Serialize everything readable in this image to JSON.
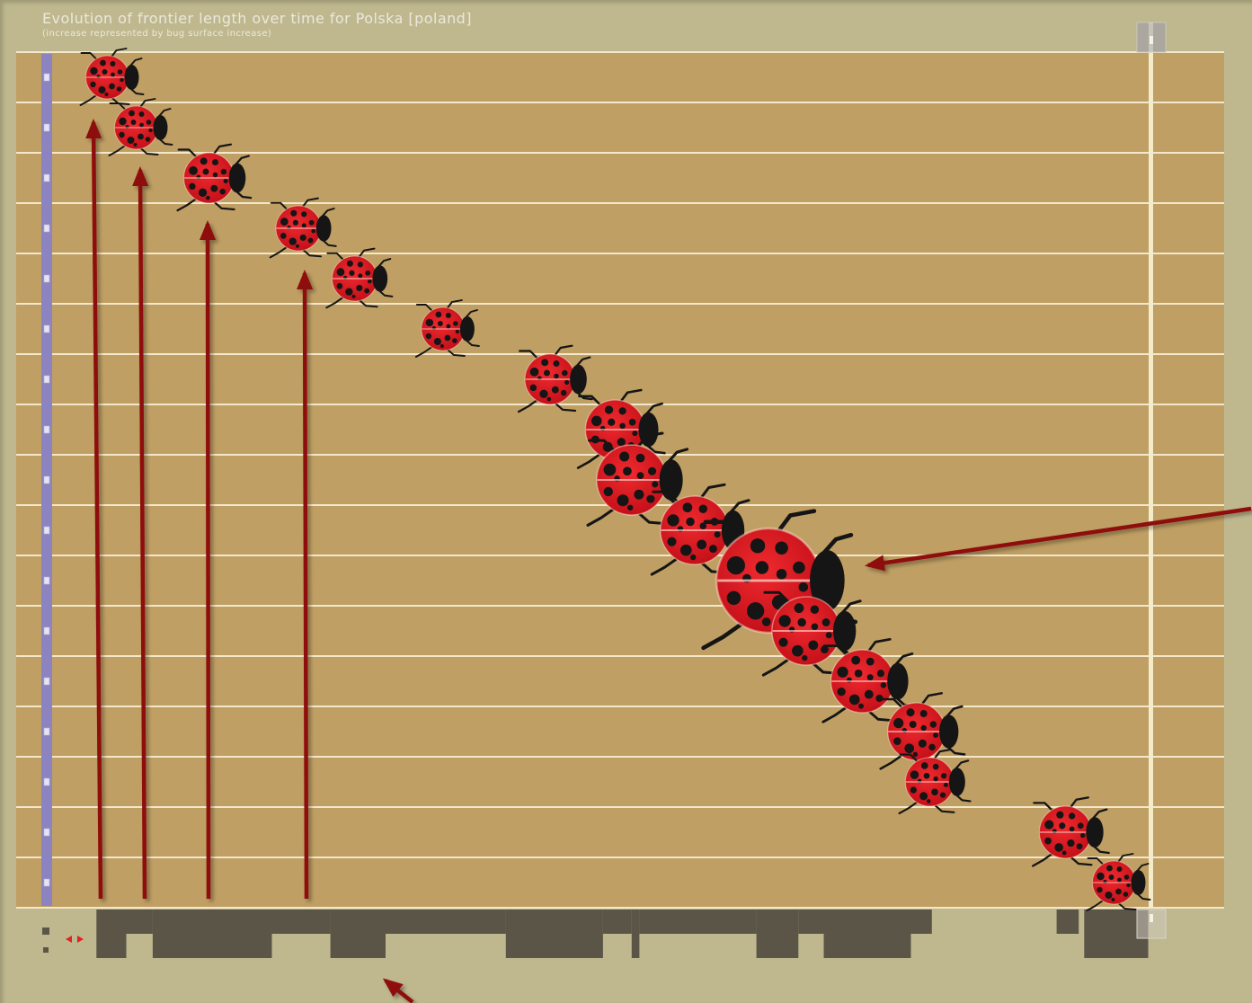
{
  "colors": {
    "frame_background": "#bfb88f",
    "plot_background": "#bf9f63",
    "row_line": "#f3e8ca",
    "row_bar": "#8c83c1",
    "row_marker": "#e6e4ee",
    "time_cursor": "#f4ebca",
    "timeline_band": "#5b5547",
    "bug_body": "#ee2a2f",
    "bug_body_edge": "#c40f18",
    "bug_black": "#151515",
    "annotation_arrow": "#8e0a0a",
    "title_text": "#ece8da",
    "toggle_arrows": "#e12222"
  },
  "icons": {
    "range_toggle": "left-right-arrows-icon",
    "range_handle": "slider-handle-icon"
  },
  "chart_data": {
    "type": "scatter",
    "title": "Evolution of frontier length over time for Polska [poland]",
    "subtitle": "(increase represented by bug surface increase)",
    "grid": true,
    "legend": "none",
    "bugs": [
      {
        "time_pct": 5.5,
        "surface": 1.0
      },
      {
        "time_pct": 8.1,
        "surface": 1.0
      },
      {
        "time_pct": 14.7,
        "surface": 1.36
      },
      {
        "time_pct": 22.8,
        "surface": 1.09
      },
      {
        "time_pct": 27.9,
        "surface": 1.09
      },
      {
        "time_pct": 35.9,
        "surface": 1.0
      },
      {
        "time_pct": 45.6,
        "surface": 1.36
      },
      {
        "time_pct": 51.5,
        "surface": 1.89
      },
      {
        "time_pct": 53.0,
        "surface": 2.64
      },
      {
        "time_pct": 58.7,
        "surface": 2.51
      },
      {
        "time_pct": 65.4,
        "surface": 5.84
      },
      {
        "time_pct": 68.8,
        "surface": 2.51
      },
      {
        "time_pct": 73.9,
        "surface": 2.13
      },
      {
        "time_pct": 78.8,
        "surface": 1.78
      },
      {
        "time_pct": 80.0,
        "surface": 1.27
      },
      {
        "time_pct": 92.3,
        "surface": 1.46
      },
      {
        "time_pct": 96.7,
        "surface": 1.0
      }
    ],
    "timeline_bands": [
      {
        "start_pct": 4.5,
        "end_pct": 7.2,
        "level": 1
      },
      {
        "start_pct": 7.2,
        "end_pct": 9.6,
        "level": 0.5
      },
      {
        "start_pct": 9.6,
        "end_pct": 20.4,
        "level": 1
      },
      {
        "start_pct": 20.4,
        "end_pct": 25.7,
        "level": 0.5
      },
      {
        "start_pct": 25.7,
        "end_pct": 30.7,
        "level": 1
      },
      {
        "start_pct": 30.7,
        "end_pct": 41.6,
        "level": 0.5
      },
      {
        "start_pct": 41.6,
        "end_pct": 50.4,
        "level": 1
      },
      {
        "start_pct": 50.4,
        "end_pct": 53.0,
        "level": 0.5
      },
      {
        "start_pct": 53.0,
        "end_pct": 53.7,
        "level": 1
      },
      {
        "start_pct": 53.7,
        "end_pct": 64.3,
        "level": 0.5
      },
      {
        "start_pct": 64.3,
        "end_pct": 68.1,
        "level": 1
      },
      {
        "start_pct": 68.1,
        "end_pct": 70.4,
        "level": 0.5
      },
      {
        "start_pct": 70.4,
        "end_pct": 78.3,
        "level": 1
      },
      {
        "start_pct": 78.3,
        "end_pct": 80.2,
        "level": 0.5
      },
      {
        "start_pct": 91.5,
        "end_pct": 93.5,
        "level": 0.5
      },
      {
        "start_pct": 94.0,
        "end_pct": 99.8,
        "level": 1
      }
    ]
  }
}
